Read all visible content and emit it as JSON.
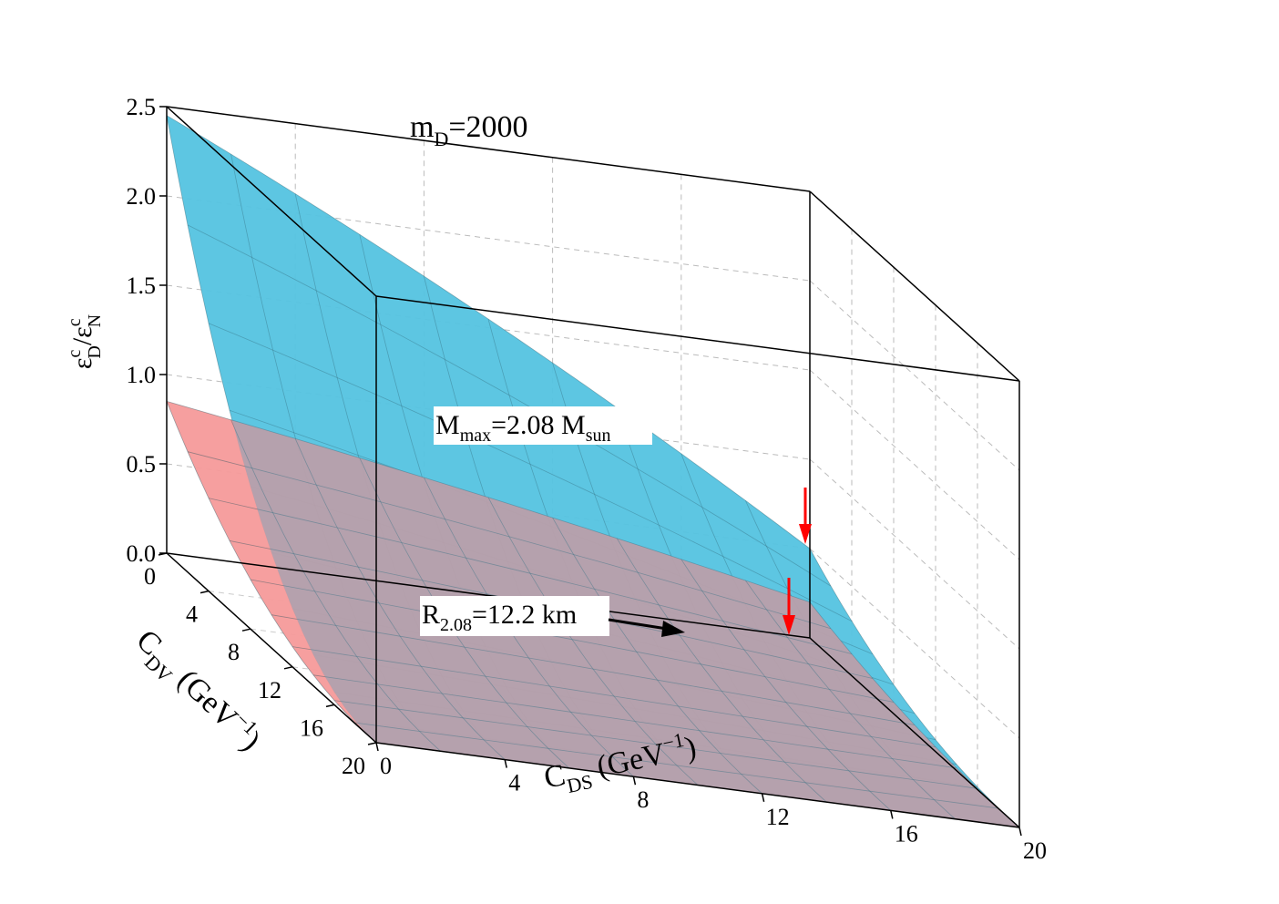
{
  "chart_data": {
    "type": "surface3d",
    "title": "m_D=2000",
    "title_main": "m",
    "title_sub": "D",
    "title_rest": "=2000",
    "zlabel": {
      "e1": "ε",
      "sup1": "c",
      "sub1": "D",
      "slash": "/",
      "e2": "ε",
      "sup2": "c",
      "sub2": "N"
    },
    "xlabel": {
      "main": "C",
      "sub": "DS",
      "rest": " (GeV",
      "sup": "−1",
      "close": ")"
    },
    "ylabel": {
      "main": "C",
      "sub": "DV",
      "rest": " (GeV",
      "sup": "−1",
      "close": ")"
    },
    "x_range": [
      0,
      20
    ],
    "y_range": [
      0,
      20
    ],
    "z_range": [
      0,
      2.5
    ],
    "x_ticks": [
      "0",
      "4",
      "8",
      "12",
      "16",
      "20"
    ],
    "y_ticks": [
      "0",
      "4",
      "8",
      "12",
      "16",
      "20"
    ],
    "z_ticks": [
      "0.0",
      "0.5",
      "1.0",
      "1.5",
      "2.0",
      "2.5"
    ],
    "grid": true,
    "surfaces": [
      {
        "name": "M_max=2.08 M_sun",
        "color": "#5bd3ef",
        "corner_values": {
          "x0y0": 2.45,
          "x20y0": 0.5,
          "x0y20": 0.0,
          "x20y20": 0.0
        }
      },
      {
        "name": "R_2.08=12.2 km",
        "color": "#f59a9a",
        "corner_values": {
          "x0y0": 0.85,
          "x20y0": 0.2,
          "x0y20": 0.0,
          "x20y20": 0.0
        }
      }
    ],
    "annotations": {
      "mmax": {
        "main": "M",
        "sub1": "max",
        "mid": "=2.08 M",
        "sub2": "sun"
      },
      "r208": {
        "main": "R",
        "sub": "2.08",
        "rest": "=12.2 km"
      }
    },
    "arrow_color": "#ff0000"
  }
}
